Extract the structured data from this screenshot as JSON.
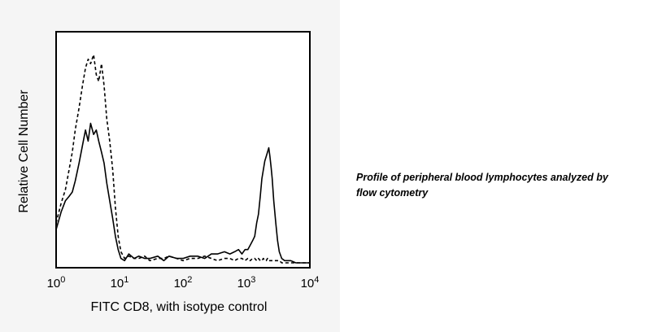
{
  "caption": {
    "line1": "Profile of peripheral blood lymphocytes analyzed by",
    "line2": "flow cytometry"
  },
  "chart_data": {
    "type": "line",
    "title": "",
    "xlabel": "FITC CD8, with isotype control",
    "ylabel": "Relative Cell Number",
    "x_scale": "log",
    "xlim": [
      1,
      10000
    ],
    "ylim": [
      0,
      100
    ],
    "grid": false,
    "legend": "none",
    "x_ticks": [
      {
        "value": 1,
        "base": "10",
        "exp": "0"
      },
      {
        "value": 10,
        "base": "10",
        "exp": "1"
      },
      {
        "value": 100,
        "base": "10",
        "exp": "2"
      },
      {
        "value": 1000,
        "base": "10",
        "exp": "3"
      },
      {
        "value": 10000,
        "base": "10",
        "exp": "4"
      }
    ],
    "series": [
      {
        "style": "solid",
        "color": "#000000",
        "x": [
          1,
          1.2,
          1.4,
          1.6,
          1.8,
          2.0,
          2.3,
          2.6,
          2.9,
          3.2,
          3.5,
          3.9,
          4.3,
          4.7,
          5.2,
          5.7,
          6.3,
          7.0,
          7.8,
          8.6,
          9.5,
          10.5,
          12,
          14,
          17,
          20,
          25,
          30,
          40,
          50,
          60,
          80,
          100,
          130,
          170,
          220,
          280,
          350,
          450,
          550,
          650,
          750,
          850,
          950,
          1050,
          1150,
          1250,
          1350,
          1450,
          1550,
          1650,
          1750,
          1850,
          1950,
          2050,
          2150,
          2250,
          2350,
          2450,
          2550,
          2700,
          2900,
          3100,
          3300,
          3600,
          4000,
          5000,
          6000,
          8000,
          10000
        ],
        "y": [
          15,
          23,
          28,
          30,
          32,
          37,
          45,
          53,
          60,
          55,
          63,
          58,
          60,
          55,
          50,
          45,
          36,
          28,
          20,
          12,
          6,
          2,
          1,
          4,
          2,
          3,
          2,
          2,
          3,
          1,
          3,
          2,
          2,
          3,
          3,
          2,
          4,
          4,
          5,
          4,
          5,
          6,
          4,
          6,
          6,
          8,
          10,
          12,
          18,
          22,
          30,
          38,
          42,
          46,
          48,
          50,
          52,
          48,
          43,
          38,
          28,
          18,
          10,
          5,
          2,
          1,
          1,
          0,
          0,
          0
        ]
      },
      {
        "style": "dashed",
        "color": "#000000",
        "x": [
          1,
          1.2,
          1.4,
          1.6,
          1.8,
          2.0,
          2.3,
          2.6,
          2.9,
          3.2,
          3.5,
          3.9,
          4.3,
          4.7,
          5.2,
          5.7,
          6.3,
          7.0,
          7.8,
          8.6,
          9.5,
          10.5,
          12,
          14,
          17,
          20,
          25,
          30,
          40,
          50,
          60,
          80,
          100,
          130,
          170,
          220,
          280,
          350,
          450,
          550,
          650,
          750,
          850,
          950,
          1050,
          1150,
          1250,
          1350,
          1450,
          1550,
          1650,
          1750,
          1850,
          1950,
          2050,
          2150,
          2250,
          2350,
          2450,
          2550,
          2700,
          2900,
          3100,
          3300,
          3600,
          4000,
          5000,
          6000,
          8000,
          10000
        ],
        "y": [
          18,
          27,
          33,
          42,
          50,
          60,
          70,
          80,
          88,
          92,
          90,
          94,
          85,
          82,
          90,
          80,
          65,
          55,
          42,
          25,
          12,
          5,
          2,
          3,
          2,
          2,
          3,
          1,
          2,
          2,
          3,
          2,
          1,
          2,
          2,
          3,
          2,
          1,
          2,
          2,
          1,
          2,
          2,
          1,
          2,
          1,
          2,
          2,
          1,
          2,
          1,
          1,
          2,
          1,
          1,
          2,
          1,
          1,
          1,
          1,
          1,
          1,
          1,
          1,
          0,
          0,
          0,
          0,
          0,
          0
        ]
      }
    ]
  }
}
